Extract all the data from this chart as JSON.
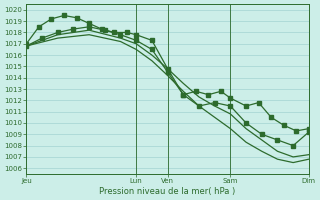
{
  "background_color": "#cceee8",
  "grid_color": "#99cccc",
  "line_color": "#2d6b2d",
  "ylim": [
    1005.5,
    1020.5
  ],
  "ytick_min": 1006,
  "ytick_max": 1020,
  "xlabel": "Pression niveau de la mer( hPa )",
  "day_labels": [
    "Jeu",
    "Lun",
    "Ven",
    "Sam",
    "Dim"
  ],
  "day_positions": [
    0.0,
    3.5,
    4.5,
    6.5,
    9.0
  ],
  "xlim": [
    0,
    9.0
  ],
  "vline_positions": [
    3.5,
    4.5,
    6.5
  ],
  "series1_x": [
    0.0,
    0.4,
    0.8,
    1.2,
    1.6,
    2.0,
    2.4,
    2.8,
    3.2,
    3.5,
    4.0,
    4.5,
    5.0,
    5.4,
    5.8,
    6.2,
    6.5,
    7.0,
    7.4,
    7.8,
    8.2,
    8.6,
    9.0
  ],
  "series1_y": [
    1017.0,
    1018.5,
    1019.2,
    1019.5,
    1019.3,
    1018.8,
    1018.3,
    1018.0,
    1018.0,
    1017.8,
    1017.3,
    1014.8,
    1012.5,
    1012.8,
    1012.5,
    1012.8,
    1012.2,
    1011.5,
    1011.8,
    1010.5,
    1009.8,
    1009.3,
    1009.5
  ],
  "series1_has_markers": true,
  "series2_x": [
    0.0,
    0.5,
    1.0,
    1.5,
    2.0,
    2.5,
    3.0,
    3.5,
    4.0,
    4.5,
    5.0,
    5.5,
    6.0,
    6.5,
    7.0,
    7.5,
    8.0,
    8.5,
    9.0
  ],
  "series2_y": [
    1016.8,
    1017.5,
    1018.0,
    1018.3,
    1018.5,
    1018.2,
    1017.8,
    1017.3,
    1016.5,
    1014.5,
    1012.5,
    1011.5,
    1011.8,
    1011.5,
    1010.0,
    1009.0,
    1008.5,
    1008.0,
    1009.2
  ],
  "series2_has_markers": true,
  "series3_x": [
    0.0,
    1.0,
    2.0,
    3.0,
    3.5,
    4.0,
    4.5,
    5.0,
    5.5,
    6.0,
    6.5,
    7.0,
    7.5,
    8.0,
    8.5,
    9.0
  ],
  "series3_y": [
    1016.8,
    1017.8,
    1018.2,
    1017.5,
    1017.0,
    1016.0,
    1014.8,
    1013.5,
    1012.3,
    1011.5,
    1010.8,
    1009.5,
    1008.5,
    1007.5,
    1007.0,
    1007.2
  ],
  "series3_has_markers": false,
  "series4_x": [
    0.0,
    1.0,
    2.0,
    3.0,
    3.5,
    4.0,
    4.5,
    5.0,
    5.5,
    6.0,
    6.5,
    7.0,
    7.5,
    8.0,
    8.5,
    9.0
  ],
  "series4_y": [
    1016.8,
    1017.5,
    1017.8,
    1017.2,
    1016.5,
    1015.5,
    1014.2,
    1012.8,
    1011.5,
    1010.5,
    1009.5,
    1008.3,
    1007.5,
    1006.8,
    1006.5,
    1006.8
  ],
  "series4_has_markers": false,
  "marker_size": 2.5,
  "line_width": 0.9,
  "tick_labelsize": 5,
  "xlabel_fontsize": 6
}
